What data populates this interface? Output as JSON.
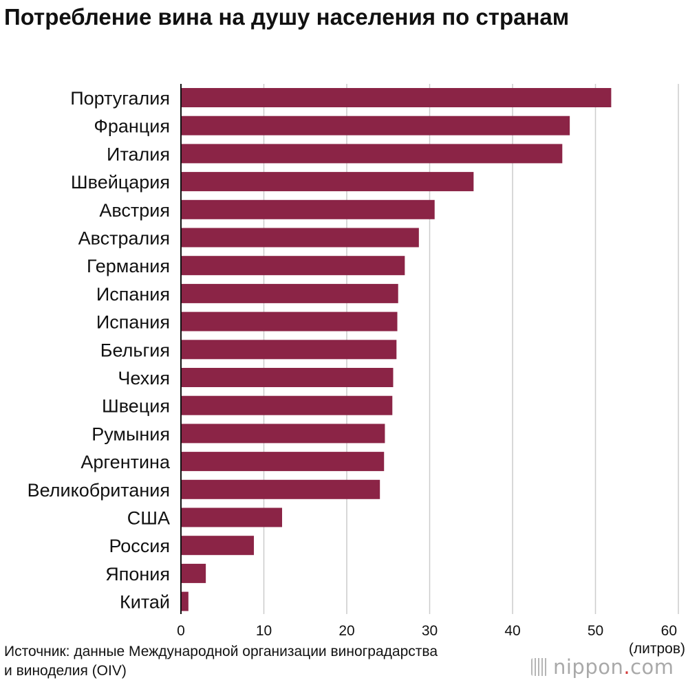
{
  "title": "Потребление вина на душу населения по странам",
  "source": {
    "line1": "Источник: данные Международной организации виноградарства",
    "line2": "и виноделия (OIV)"
  },
  "logo": {
    "brand": "nippon",
    "dot": ".",
    "tld": "com"
  },
  "colors": {
    "bar": "#8b2446",
    "grid": "#cccccc",
    "axis": "#111111",
    "logo_text": "#a9a9a9",
    "logo_dot": "#d23a3a"
  },
  "chart_data": {
    "type": "bar",
    "orientation": "horizontal",
    "categories": [
      "Португалия",
      "Франция",
      "Италия",
      "Швейцария",
      "Австрия",
      "Австралия",
      "Германия",
      "Испания",
      "Испания",
      "Бельгия",
      "Чехия",
      "Швеция",
      "Румыния",
      "Аргентина",
      "Великобритания",
      "США",
      "Россия",
      "Япония",
      "Китай"
    ],
    "values": [
      51.9,
      46.9,
      46.0,
      35.3,
      30.6,
      28.7,
      27.0,
      26.2,
      26.1,
      26.0,
      25.6,
      25.5,
      24.6,
      24.5,
      24.0,
      12.2,
      8.8,
      3.0,
      0.9
    ],
    "xlim": [
      0,
      60
    ],
    "xticks": [
      0,
      10,
      20,
      30,
      40,
      50,
      60
    ],
    "xlabel": "(литров)",
    "grid": true
  }
}
